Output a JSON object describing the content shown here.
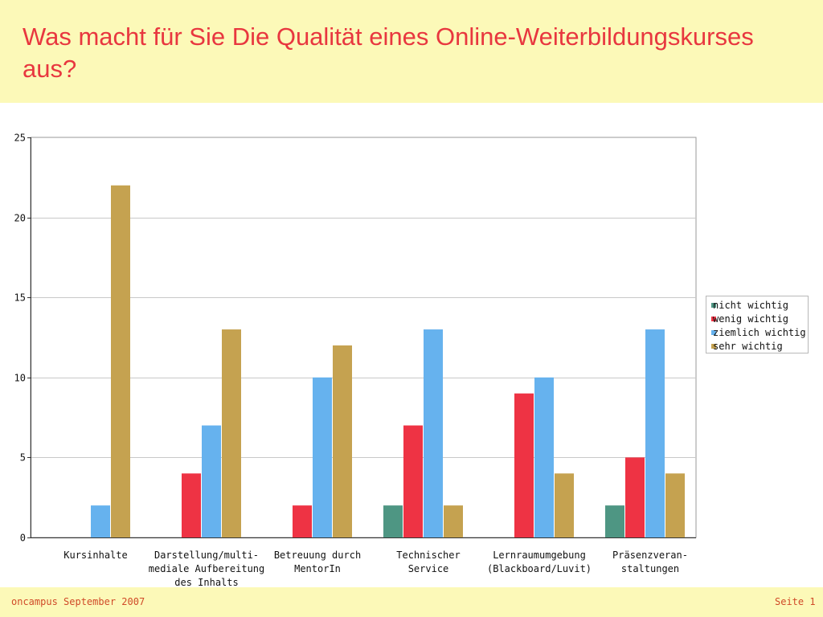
{
  "header": {
    "title": "Was macht für Sie Die Qualität eines Online-Weiterbildungskurses aus?"
  },
  "footer": {
    "left": "oncampus September 2007",
    "right": "Seite 1"
  },
  "colors": {
    "header_bg": "#fcf9b8",
    "title": "#e8373f",
    "gridline": "#c8c8c8",
    "axis": "#333333"
  },
  "chart_data": {
    "type": "bar",
    "title": "",
    "xlabel": "",
    "ylabel": "",
    "ylim": [
      0,
      25
    ],
    "yticks": [
      0,
      5,
      10,
      15,
      20,
      25
    ],
    "grid": true,
    "legend_position": "right",
    "categories": [
      "Kursinhalte",
      "Darstellung/multi-mediale Aufbereitung des Inhalts",
      "Betreuung durch MentorIn",
      "Technischer Service",
      "Lernraumumgebung (Blackboard/Luvit)",
      "Präsenzveran-staltungen"
    ],
    "category_label_lines": [
      [
        "Kursinhalte"
      ],
      [
        "Darstellung/multi-",
        "mediale Aufbereitung",
        "des Inhalts"
      ],
      [
        "Betreuung durch",
        "MentorIn"
      ],
      [
        "Technischer",
        "Service"
      ],
      [
        "Lernraumumgebung",
        "(Blackboard/Luvit)"
      ],
      [
        "Präsenzveran-",
        "staltungen"
      ]
    ],
    "series": [
      {
        "name": "nicht wichtig",
        "color": "#4e9683",
        "values": [
          0,
          0,
          0,
          2,
          0,
          2
        ]
      },
      {
        "name": "wenig wichtig",
        "color": "#ee3344",
        "values": [
          0,
          4,
          2,
          7,
          9,
          5
        ]
      },
      {
        "name": "ziemlich wichtig",
        "color": "#66b2ee",
        "values": [
          2,
          7,
          10,
          13,
          10,
          13
        ]
      },
      {
        "name": "sehr wichtig",
        "color": "#c5a250",
        "values": [
          22,
          13,
          12,
          2,
          4,
          4
        ]
      }
    ]
  }
}
